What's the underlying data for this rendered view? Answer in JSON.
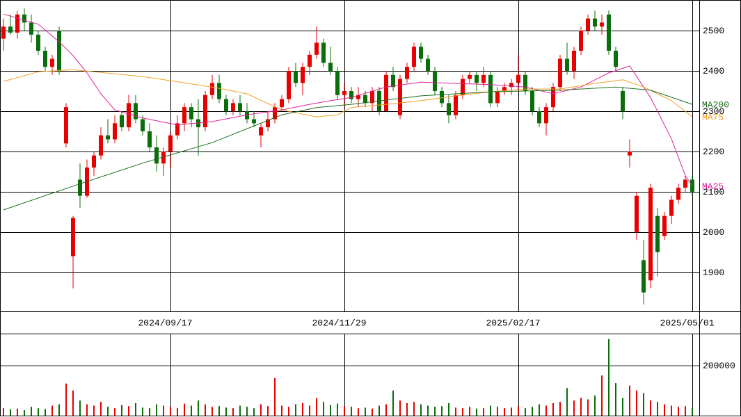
{
  "chart_data": {
    "type": "candlestick",
    "categories": [
      null,
      null,
      null,
      null,
      null,
      null,
      null,
      null,
      null,
      null,
      null,
      null,
      null,
      null,
      null,
      null,
      null,
      null,
      null,
      null,
      null,
      null,
      null,
      null,
      "2024/09/17",
      null,
      null,
      null,
      null,
      null,
      null,
      null,
      null,
      null,
      null,
      null,
      null,
      null,
      null,
      null,
      null,
      null,
      null,
      null,
      null,
      null,
      null,
      null,
      null,
      "2024/11/29",
      null,
      null,
      null,
      null,
      null,
      null,
      null,
      null,
      null,
      null,
      null,
      null,
      null,
      null,
      null,
      null,
      null,
      null,
      null,
      null,
      null,
      null,
      null,
      null,
      "2025/02/17",
      null,
      null,
      null,
      null,
      null,
      null,
      null,
      null,
      null,
      null,
      null,
      null,
      null,
      null,
      null,
      null,
      null,
      null,
      null,
      null,
      null,
      null,
      null,
      null,
      "2025/05/01"
    ],
    "open": [
      2480,
      2510,
      2495,
      2540,
      2520,
      2490,
      2450,
      2410,
      2500,
      2220,
      1940,
      2130,
      2090,
      2160,
      2190,
      2240,
      2230,
      2290,
      2260,
      2320,
      2280,
      2250,
      2210,
      2170,
      2200,
      2240,
      2270,
      2310,
      2280,
      2260,
      2340,
      2370,
      2330,
      2300,
      2320,
      2300,
      2280,
      2240,
      2260,
      2280,
      2310,
      2330,
      2400,
      2370,
      2410,
      2440,
      2470,
      2420,
      2400,
      2340,
      2350,
      2330,
      2340,
      2320,
      2350,
      2300,
      2390,
      2290,
      2380,
      2410,
      2460,
      2430,
      2400,
      2350,
      2320,
      2290,
      2340,
      2380,
      2390,
      2370,
      2390,
      2320,
      2350,
      2360,
      2370,
      2390,
      2350,
      2300,
      2270,
      2310,
      2360,
      2430,
      2400,
      2450,
      2500,
      2530,
      2510,
      2540,
      2450,
      2350,
      2190,
      2000,
      1930,
      1880,
      2040,
      1990,
      2040,
      2080,
      2110,
      2130
    ],
    "high": [
      2530,
      2540,
      2550,
      2555,
      2540,
      2500,
      2460,
      2440,
      2510,
      2320,
      2040,
      2170,
      2180,
      2200,
      2260,
      2280,
      2290,
      2300,
      2340,
      2340,
      2290,
      2270,
      2240,
      2210,
      2250,
      2290,
      2320,
      2320,
      2330,
      2350,
      2390,
      2390,
      2340,
      2330,
      2340,
      2320,
      2300,
      2270,
      2300,
      2320,
      2340,
      2410,
      2420,
      2420,
      2450,
      2510,
      2480,
      2460,
      2410,
      2370,
      2360,
      2360,
      2350,
      2360,
      2360,
      2400,
      2410,
      2390,
      2420,
      2470,
      2470,
      2440,
      2410,
      2360,
      2340,
      2350,
      2390,
      2400,
      2400,
      2410,
      2400,
      2360,
      2370,
      2380,
      2440,
      2400,
      2360,
      2310,
      2320,
      2370,
      2440,
      2470,
      2460,
      2510,
      2540,
      2550,
      2540,
      2550,
      2460,
      2360,
      2230,
      2100,
      1980,
      2120,
      2060,
      2050,
      2090,
      2120,
      2140,
      2140
    ],
    "low": [
      2450,
      2490,
      2480,
      2500,
      2470,
      2440,
      2400,
      2390,
      2390,
      2210,
      1860,
      2060,
      2085,
      2140,
      2180,
      2220,
      2220,
      2250,
      2250,
      2270,
      2240,
      2200,
      2150,
      2140,
      2160,
      2230,
      2250,
      2260,
      2190,
      2250,
      2330,
      2320,
      2290,
      2290,
      2290,
      2270,
      2260,
      2210,
      2250,
      2270,
      2300,
      2320,
      2360,
      2340,
      2390,
      2430,
      2410,
      2390,
      2330,
      2310,
      2320,
      2310,
      2310,
      2300,
      2290,
      2300,
      2350,
      2280,
      2370,
      2400,
      2420,
      2390,
      2340,
      2310,
      2270,
      2280,
      2330,
      2370,
      2350,
      2360,
      2310,
      2310,
      2340,
      2340,
      2350,
      2340,
      2290,
      2260,
      2240,
      2300,
      2350,
      2390,
      2380,
      2440,
      2490,
      2500,
      2490,
      2440,
      2400,
      2280,
      2160,
      1980,
      1820,
      1860,
      1890,
      1980,
      2020,
      2070,
      2100,
      2090
    ],
    "close": [
      2510,
      2495,
      2540,
      2520,
      2490,
      2450,
      2410,
      2430,
      2400,
      2310,
      2035,
      2090,
      2160,
      2190,
      2240,
      2230,
      2270,
      2260,
      2320,
      2280,
      2250,
      2210,
      2170,
      2200,
      2240,
      2270,
      2310,
      2280,
      2260,
      2340,
      2370,
      2330,
      2300,
      2320,
      2300,
      2280,
      2270,
      2260,
      2280,
      2310,
      2330,
      2400,
      2370,
      2410,
      2440,
      2470,
      2420,
      2400,
      2340,
      2350,
      2330,
      2340,
      2320,
      2350,
      2300,
      2390,
      2360,
      2380,
      2410,
      2460,
      2430,
      2400,
      2350,
      2320,
      2290,
      2340,
      2380,
      2390,
      2370,
      2390,
      2320,
      2350,
      2360,
      2370,
      2390,
      2350,
      2300,
      2270,
      2310,
      2360,
      2430,
      2400,
      2450,
      2500,
      2530,
      2510,
      2520,
      2450,
      2410,
      2300,
      2200,
      2090,
      1850,
      2110,
      1950,
      2040,
      2080,
      2110,
      2130,
      2100
    ],
    "up_color": "#e60000",
    "down_color": "#0a6e0a",
    "ylim": [
      1803,
      2576
    ],
    "yticks": [
      1900,
      2000,
      2100,
      2200,
      2300,
      2400,
      2500
    ],
    "ma": [
      {
        "name": "MA25",
        "color": "#e0209a",
        "x": [
          0,
          5,
          8,
          10,
          12,
          14,
          16,
          20,
          25,
          30,
          35,
          40,
          44,
          47,
          50,
          55,
          60,
          65,
          70,
          75,
          79,
          83,
          87,
          90,
          93,
          96,
          98,
          99
        ],
        "values": [
          2541,
          2516,
          2472,
          2438,
          2395,
          2343,
          2303,
          2283,
          2266,
          2274,
          2291,
          2303,
          2317,
          2326,
          2334,
          2360,
          2372,
          2369,
          2366,
          2360,
          2343,
          2360,
          2395,
          2412,
          2334,
          2231,
          2140,
          2114
        ]
      },
      {
        "name": "MA75",
        "color": "#f0a020",
        "x": [
          0,
          5,
          10,
          20,
          30,
          35,
          40,
          45,
          48,
          50,
          55,
          60,
          65,
          70,
          75,
          80,
          85,
          89,
          92,
          96,
          99
        ],
        "values": [
          2374,
          2398,
          2403,
          2386,
          2360,
          2343,
          2303,
          2286,
          2291,
          2309,
          2317,
          2326,
          2338,
          2348,
          2355,
          2355,
          2369,
          2378,
          2360,
          2326,
          2286
        ]
      },
      {
        "name": "MA200",
        "color": "#1e6e1e",
        "x": [
          0,
          10,
          20,
          30,
          40,
          45,
          50,
          60,
          70,
          80,
          88,
          93,
          99
        ],
        "values": [
          2055,
          2114,
          2171,
          2222,
          2291,
          2309,
          2317,
          2338,
          2348,
          2352,
          2360,
          2352,
          2317
        ]
      }
    ],
    "volume": {
      "values": [
        30000,
        25000,
        28000,
        22000,
        35000,
        30000,
        26000,
        40000,
        45000,
        128000,
        100000,
        60000,
        45000,
        40000,
        55000,
        35000,
        30000,
        42000,
        38000,
        50000,
        32000,
        30000,
        45000,
        40000,
        35000,
        30000,
        48000,
        40000,
        60000,
        45000,
        35000,
        38000,
        32000,
        30000,
        40000,
        35000,
        30000,
        45000,
        38000,
        150000,
        40000,
        35000,
        45000,
        50000,
        40000,
        70000,
        55000,
        42000,
        48000,
        38000,
        35000,
        30000,
        32000,
        28000,
        40000,
        45000,
        100000,
        60000,
        50000,
        55000,
        45000,
        40000,
        35000,
        38000,
        50000,
        32000,
        30000,
        35000,
        28000,
        30000,
        40000,
        35000,
        30000,
        32000,
        38000,
        30000,
        35000,
        45000,
        40000,
        50000,
        55000,
        110000,
        60000,
        70000,
        65000,
        80000,
        160000,
        305000,
        130000,
        70000,
        120000,
        100000,
        90000,
        60000,
        55000,
        45000,
        40000,
        35000,
        38000,
        30000
      ],
      "ylim": [
        0,
        327000
      ],
      "yticks": [
        200000
      ]
    }
  }
}
